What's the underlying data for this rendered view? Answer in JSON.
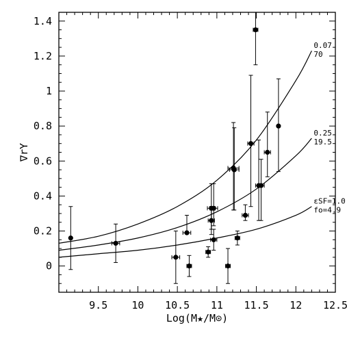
{
  "chart_data": {
    "type": "scatter",
    "title": "",
    "xlabel": "Log(M★/M⊙)",
    "ylabel": "∇rY",
    "xlim": [
      9.0,
      12.5
    ],
    "ylim": [
      -0.15,
      1.45
    ],
    "x_ticks": [
      9.5,
      10,
      10.5,
      11,
      11.5,
      12,
      12.5
    ],
    "x_tick_labels": [
      "9.5",
      "10",
      "10.5",
      "11",
      "11.5",
      "12",
      "12.5"
    ],
    "y_ticks": [
      0,
      0.2,
      0.4,
      0.6,
      0.8,
      1.0,
      1.2,
      1.4
    ],
    "y_tick_labels": [
      "0",
      "0.2",
      "0.4",
      "0.6",
      "0.8",
      "1",
      "1.2",
      "1.4"
    ],
    "grid": false,
    "points": [
      {
        "x": 9.15,
        "y": 0.16,
        "yerr_lo": 0.18,
        "yerr_hi": 0.18,
        "xerr": 0
      },
      {
        "x": 9.72,
        "y": 0.13,
        "yerr_lo": 0.11,
        "yerr_hi": 0.11,
        "xerr": 0.05
      },
      {
        "x": 10.48,
        "y": 0.05,
        "yerr_lo": 0.15,
        "yerr_hi": 0.15,
        "xerr": 0.05
      },
      {
        "x": 10.62,
        "y": 0.19,
        "yerr_lo": 0.0,
        "yerr_hi": 0.1,
        "xerr": 0.05
      },
      {
        "x": 10.65,
        "y": 0.0,
        "yerr_lo": 0.06,
        "yerr_hi": 0.06,
        "xerr": 0.03
      },
      {
        "x": 10.89,
        "y": 0.08,
        "yerr_lo": 0.03,
        "yerr_hi": 0.03,
        "xerr": 0.03
      },
      {
        "x": 10.93,
        "y": 0.33,
        "yerr_lo": 0.12,
        "yerr_hi": 0.14,
        "xerr": 0.05
      },
      {
        "x": 10.93,
        "y": 0.26,
        "yerr_lo": 0.08,
        "yerr_hi": 0.08,
        "xerr": 0.04
      },
      {
        "x": 10.96,
        "y": 0.33,
        "yerr_lo": 0.1,
        "yerr_hi": 0.14,
        "xerr": 0.05
      },
      {
        "x": 10.96,
        "y": 0.15,
        "yerr_lo": 0.06,
        "yerr_hi": 0.06,
        "xerr": 0.04
      },
      {
        "x": 11.14,
        "y": 0.0,
        "yerr_lo": 0.1,
        "yerr_hi": 0.1,
        "xerr": 0.03
      },
      {
        "x": 11.21,
        "y": 0.56,
        "yerr_lo": 0.24,
        "yerr_hi": 0.26,
        "xerr": 0.07
      },
      {
        "x": 11.22,
        "y": 0.55,
        "yerr_lo": 0.23,
        "yerr_hi": 0.24,
        "xerr": 0.06
      },
      {
        "x": 11.26,
        "y": 0.16,
        "yerr_lo": 0.04,
        "yerr_hi": 0.04,
        "xerr": 0.03
      },
      {
        "x": 11.36,
        "y": 0.29,
        "yerr_lo": 0.03,
        "yerr_hi": 0.06,
        "xerr": 0.04
      },
      {
        "x": 11.43,
        "y": 0.7,
        "yerr_lo": 0.36,
        "yerr_hi": 0.39,
        "xerr": 0.04
      },
      {
        "x": 11.49,
        "y": 1.35,
        "yerr_lo": 0.2,
        "yerr_hi": 0.1,
        "xerr": 0.03
      },
      {
        "x": 11.53,
        "y": 0.46,
        "yerr_lo": 0.2,
        "yerr_hi": 0.26,
        "xerr": 0.04
      },
      {
        "x": 11.56,
        "y": 0.46,
        "yerr_lo": 0.2,
        "yerr_hi": 0.15,
        "xerr": 0.04
      },
      {
        "x": 11.64,
        "y": 0.65,
        "yerr_lo": 0.14,
        "yerr_hi": 0.23,
        "xerr": 0.04
      },
      {
        "x": 11.78,
        "y": 0.8,
        "yerr_lo": 0.26,
        "yerr_hi": 0.27,
        "xerr": 0
      }
    ],
    "curves": [
      {
        "label_line1": "0.07",
        "label_line2": "70",
        "x": [
          9.0,
          9.5,
          10.0,
          10.5,
          11.0,
          11.5,
          12.0,
          12.2
        ],
        "y": [
          0.13,
          0.17,
          0.24,
          0.34,
          0.49,
          0.72,
          1.06,
          1.23
        ]
      },
      {
        "label_line1": "0.25",
        "label_line2": "19.5",
        "x": [
          9.0,
          9.5,
          10.0,
          10.5,
          11.0,
          11.5,
          12.0,
          12.2
        ],
        "y": [
          0.09,
          0.12,
          0.16,
          0.22,
          0.31,
          0.44,
          0.63,
          0.73
        ]
      },
      {
        "label_line1": "εSF=1.0",
        "label_line2": "fo=4.9",
        "x": [
          9.0,
          9.5,
          10.0,
          10.5,
          11.0,
          11.5,
          12.0,
          12.2
        ],
        "y": [
          0.05,
          0.07,
          0.09,
          0.12,
          0.16,
          0.21,
          0.29,
          0.34
        ]
      }
    ]
  }
}
